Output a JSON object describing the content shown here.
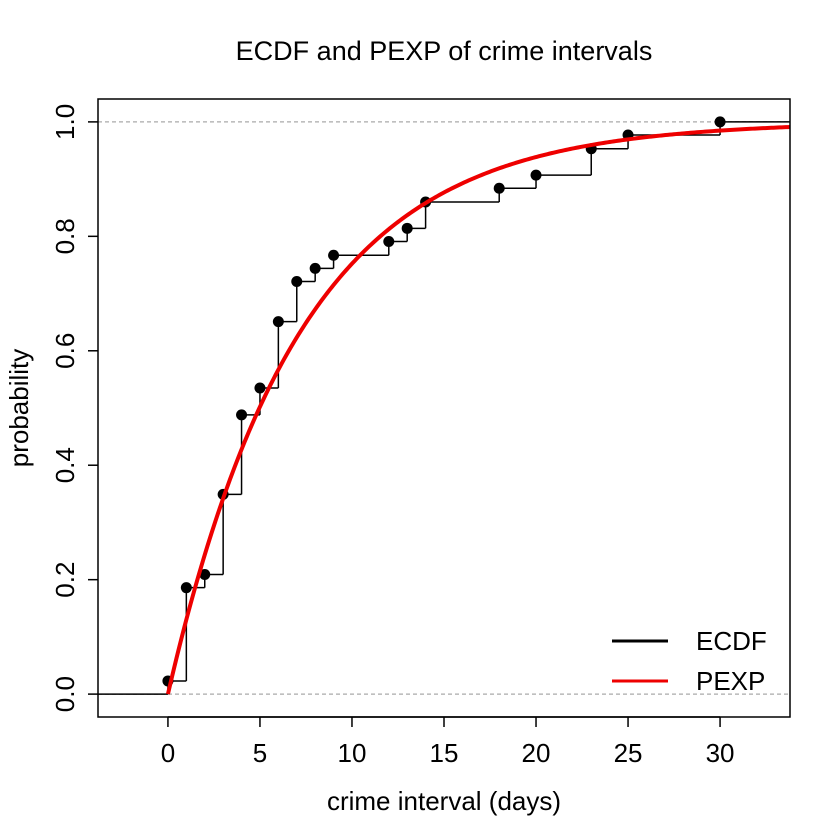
{
  "chart_data": {
    "type": "line",
    "title": "ECDF and PEXP of crime intervals",
    "xlabel": "crime interval (days)",
    "ylabel": "probability",
    "xlim": [
      -3.8,
      33.8
    ],
    "ylim": [
      -0.04,
      1.04
    ],
    "x_ticks": [
      0,
      5,
      10,
      15,
      20,
      25,
      30
    ],
    "y_ticks": [
      0.0,
      0.2,
      0.4,
      0.6,
      0.8,
      1.0
    ],
    "x_tick_labels": [
      "0",
      "5",
      "10",
      "15",
      "20",
      "25",
      "30"
    ],
    "y_tick_labels": [
      "0.0",
      "0.2",
      "0.4",
      "0.6",
      "0.8",
      "1.0"
    ],
    "reference_lines": [
      0,
      1
    ],
    "series": [
      {
        "name": "ECDF",
        "kind": "step",
        "color": "#000000",
        "x": [
          0,
          1,
          2,
          3,
          4,
          5,
          6,
          7,
          8,
          9,
          12,
          13,
          14,
          18,
          20,
          23,
          25,
          30
        ],
        "y": [
          0.023,
          0.186,
          0.209,
          0.349,
          0.488,
          0.535,
          0.651,
          0.721,
          0.744,
          0.767,
          0.791,
          0.814,
          0.86,
          0.884,
          0.907,
          0.953,
          0.977,
          1.0
        ]
      },
      {
        "name": "PEXP",
        "kind": "curve",
        "color": "#ee0000",
        "rate": 0.1395,
        "x_start": 0
      }
    ],
    "legend": {
      "position": "bottom-right",
      "entries": [
        {
          "label": "ECDF",
          "color": "#000000"
        },
        {
          "label": "PEXP",
          "color": "#ee0000"
        }
      ]
    }
  }
}
